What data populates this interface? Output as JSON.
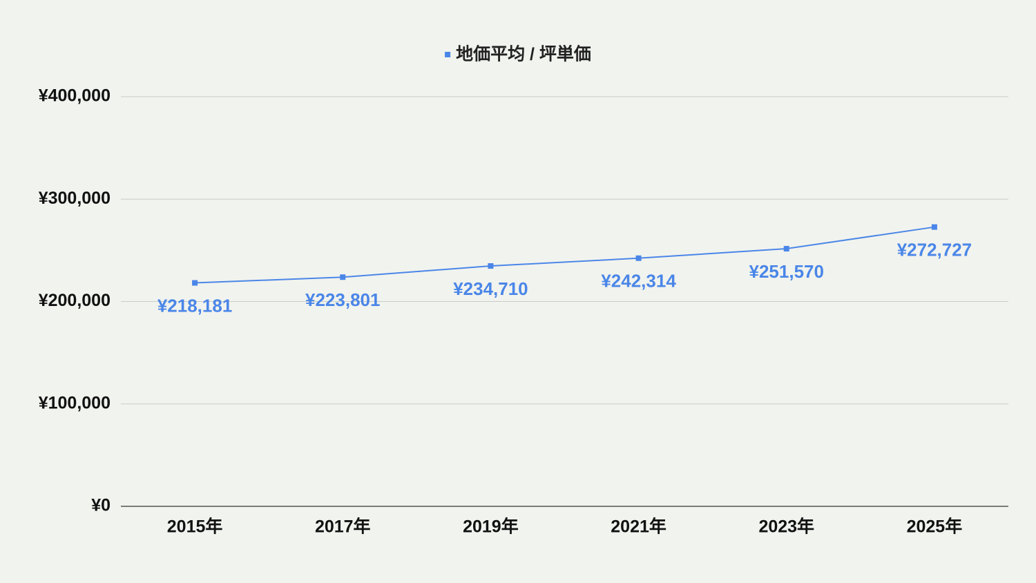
{
  "chart_data": {
    "type": "line",
    "categories": [
      "2015年",
      "2017年",
      "2019年",
      "2021年",
      "2023年",
      "2025年"
    ],
    "series": [
      {
        "name": "地価平均 / 坪単価",
        "color": "#4a86e8",
        "values": [
          218181,
          223801,
          234710,
          242314,
          251570,
          272727
        ],
        "value_labels": [
          "¥218,181",
          "¥223,801",
          "¥234,710",
          "¥242,314",
          "¥251,570",
          "¥272,727"
        ]
      }
    ],
    "ylim": [
      0,
      400000
    ],
    "yticks": [
      {
        "value": 0,
        "label": "¥0"
      },
      {
        "value": 100000,
        "label": "¥100,000"
      },
      {
        "value": 200000,
        "label": "¥200,000"
      },
      {
        "value": 300000,
        "label": "¥300,000"
      },
      {
        "value": 400000,
        "label": "¥400,000"
      }
    ],
    "grid": true,
    "legend": "top"
  }
}
